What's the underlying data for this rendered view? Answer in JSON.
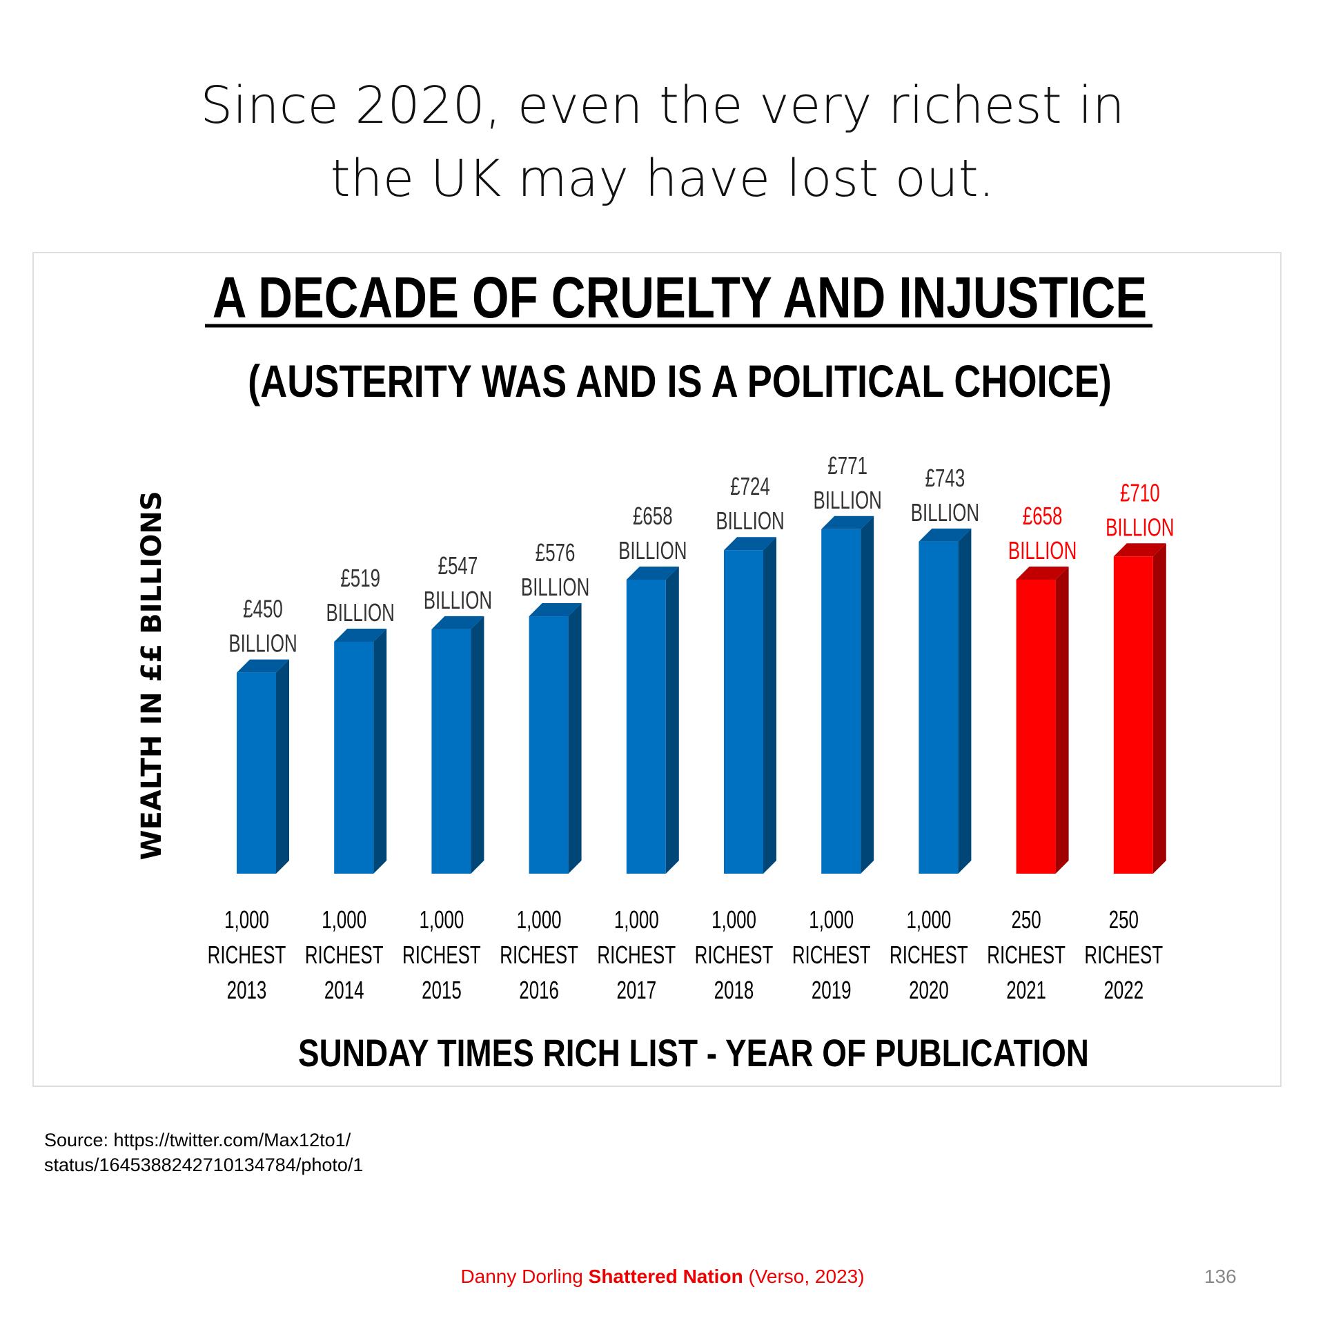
{
  "slide": {
    "title_line1": "Since 2020, even the very richest in",
    "title_line2": "the UK may have lost out.",
    "source_line1": "Source: https://twitter.com/Max12to1/",
    "source_line2": "status/1645388242710134784/photo/1",
    "footer_author": "Danny Dorling ",
    "footer_book": "Shattered Nation",
    "footer_pub": " (Verso, 2023)",
    "page_number": "136"
  },
  "chart_data": {
    "type": "bar",
    "title": "A DECADE OF CRUELTY AND INJUSTICE",
    "subtitle": "(AUSTERITY WAS AND IS A POLITICAL CHOICE)",
    "ylabel": "WEALTH IN ££ BILLIONS",
    "xlabel": "SUNDAY TIMES RICH LIST - YEAR OF PUBLICATION",
    "grid": false,
    "categories": [
      [
        "1,000",
        "RICHEST",
        "2013"
      ],
      [
        "1,000",
        "RICHEST",
        "2014"
      ],
      [
        "1,000",
        "RICHEST",
        "2015"
      ],
      [
        "1,000",
        "RICHEST",
        "2016"
      ],
      [
        "1,000",
        "RICHEST",
        "2017"
      ],
      [
        "1,000",
        "RICHEST",
        "2018"
      ],
      [
        "1,000",
        "RICHEST",
        "2019"
      ],
      [
        "1,000",
        "RICHEST",
        "2020"
      ],
      [
        "250",
        "RICHEST",
        "2021"
      ],
      [
        "250",
        "RICHEST",
        "2022"
      ]
    ],
    "values": [
      450,
      519,
      547,
      576,
      658,
      724,
      771,
      743,
      658,
      710
    ],
    "data_labels": [
      [
        "£450",
        "BILLION"
      ],
      [
        "£519",
        "BILLION"
      ],
      [
        "£547",
        "BILLION"
      ],
      [
        "£576",
        "BILLION"
      ],
      [
        "£658",
        "BILLION"
      ],
      [
        "£724",
        "BILLION"
      ],
      [
        "£771",
        "BILLION"
      ],
      [
        "£743",
        "BILLION"
      ],
      [
        "£658",
        "BILLION"
      ],
      [
        "£710",
        "BILLION"
      ]
    ],
    "bar_colors": [
      "#0070c0",
      "#0070c0",
      "#0070c0",
      "#0070c0",
      "#0070c0",
      "#0070c0",
      "#0070c0",
      "#0070c0",
      "#ff0000",
      "#ff0000"
    ],
    "label_colors": [
      "#333333",
      "#333333",
      "#333333",
      "#333333",
      "#333333",
      "#333333",
      "#333333",
      "#333333",
      "#ff0000",
      "#ff0000"
    ],
    "ylim": [
      0,
      800
    ]
  }
}
